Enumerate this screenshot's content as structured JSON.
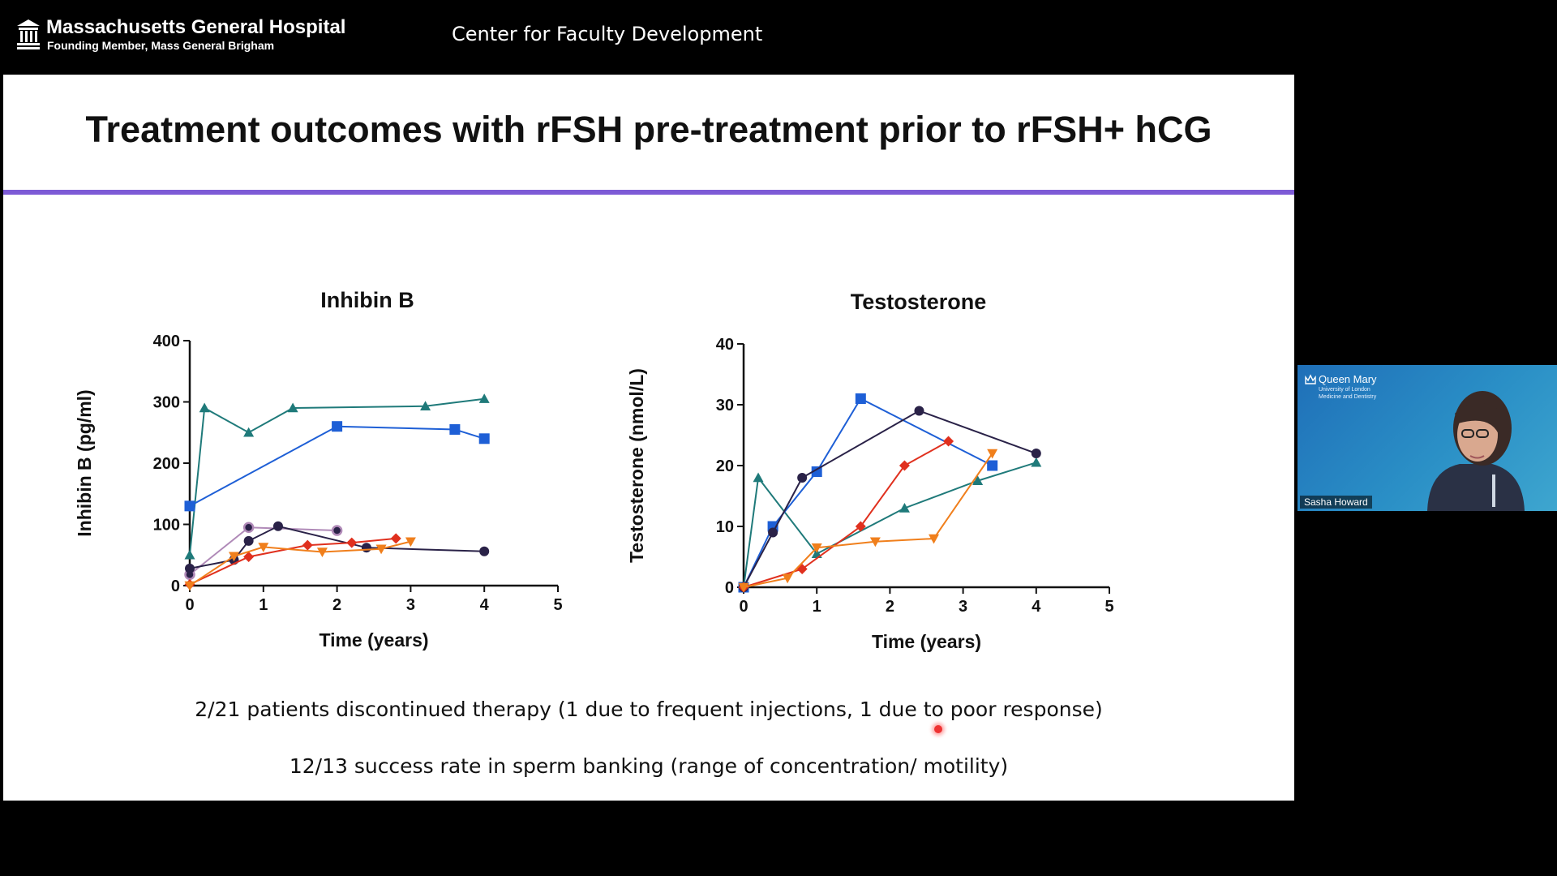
{
  "header": {
    "org_name": "Massachusetts General Hospital",
    "org_sub": "Founding Member, Mass General Brigham",
    "center_title": "Center for Faculty Development"
  },
  "slide": {
    "title": "Treatment outcomes with rFSH pre-treatment prior to rFSH+ hCG",
    "bullets": [
      "2/21 patients discontinued therapy (1 due to frequent injections, 1 due to poor response)",
      "12/13 success rate in sperm banking (range of concentration/ motility)"
    ],
    "accent_color": "#7d5bd6"
  },
  "webcam": {
    "institution": "Queen Mary",
    "institution_sub1": "University of London",
    "institution_sub2": "Medicine and Dentistry",
    "participant_name": "Sasha Howard"
  },
  "chart_data": [
    {
      "type": "line",
      "title": "Inhibin B",
      "xlabel": "Time (years)",
      "ylabel": "Inhibin B (pg/ml)",
      "xlim": [
        0,
        5
      ],
      "ylim": [
        0,
        400
      ],
      "xticks": [
        0,
        1,
        2,
        3,
        4,
        5
      ],
      "yticks": [
        0,
        100,
        200,
        300,
        400
      ],
      "series": [
        {
          "color": "#1f7a7a",
          "marker": "triangle",
          "points": [
            [
              0,
              50
            ],
            [
              0.2,
              290
            ],
            [
              0.8,
              250
            ],
            [
              1.4,
              290
            ],
            [
              3.2,
              293
            ],
            [
              4,
              305
            ]
          ]
        },
        {
          "color": "#1e5fd6",
          "marker": "square",
          "points": [
            [
              0,
              130
            ],
            [
              2,
              260
            ],
            [
              3.6,
              255
            ],
            [
              4,
              240
            ]
          ]
        },
        {
          "color": "#b08ab8",
          "marker": "ring",
          "points": [
            [
              0,
              18
            ],
            [
              0.8,
              95
            ],
            [
              2,
              90
            ]
          ]
        },
        {
          "color": "#2a2248",
          "marker": "circle",
          "points": [
            [
              0,
              28
            ],
            [
              0.6,
              42
            ],
            [
              0.8,
              73
            ],
            [
              1.2,
              97
            ],
            [
              2.4,
              62
            ],
            [
              4,
              56
            ]
          ]
        },
        {
          "color": "#e0301e",
          "marker": "diamond",
          "points": [
            [
              0,
              2
            ],
            [
              0.8,
              47
            ],
            [
              1.6,
              66
            ],
            [
              2.2,
              70
            ],
            [
              2.8,
              77
            ]
          ]
        },
        {
          "color": "#f07f1c",
          "marker": "triangle-down",
          "points": [
            [
              0,
              0
            ],
            [
              0.6,
              48
            ],
            [
              1,
              63
            ],
            [
              1.8,
              55
            ],
            [
              2.6,
              60
            ],
            [
              3,
              72
            ]
          ]
        }
      ]
    },
    {
      "type": "line",
      "title": "Testosterone",
      "xlabel": "Time (years)",
      "ylabel": "Testosterone (nmol/L)",
      "xlim": [
        0,
        5
      ],
      "ylim": [
        0,
        40
      ],
      "xticks": [
        0,
        1,
        2,
        3,
        4,
        5
      ],
      "yticks": [
        0,
        10,
        20,
        30,
        40
      ],
      "series": [
        {
          "color": "#1f7a7a",
          "marker": "triangle",
          "points": [
            [
              0,
              0
            ],
            [
              0.2,
              18
            ],
            [
              1,
              5.5
            ],
            [
              2.2,
              13
            ],
            [
              3.2,
              17.5
            ],
            [
              4,
              20.5
            ]
          ]
        },
        {
          "color": "#1e5fd6",
          "marker": "square",
          "points": [
            [
              0,
              0
            ],
            [
              0.4,
              10
            ],
            [
              1,
              19
            ],
            [
              1.6,
              31
            ],
            [
              3.4,
              20
            ]
          ]
        },
        {
          "color": "#2a2248",
          "marker": "circle",
          "points": [
            [
              0,
              0
            ],
            [
              0.4,
              9
            ],
            [
              0.8,
              18
            ],
            [
              2.4,
              29
            ],
            [
              4,
              22
            ]
          ]
        },
        {
          "color": "#e0301e",
          "marker": "diamond",
          "points": [
            [
              0,
              0
            ],
            [
              0.8,
              3
            ],
            [
              1.6,
              10
            ],
            [
              2.2,
              20
            ],
            [
              2.8,
              24
            ]
          ]
        },
        {
          "color": "#f07f1c",
          "marker": "triangle-down",
          "points": [
            [
              0,
              0
            ],
            [
              0.6,
              1.5
            ],
            [
              1,
              6.5
            ],
            [
              1.8,
              7.5
            ],
            [
              2.6,
              8
            ],
            [
              3.4,
              22
            ]
          ]
        }
      ]
    }
  ]
}
